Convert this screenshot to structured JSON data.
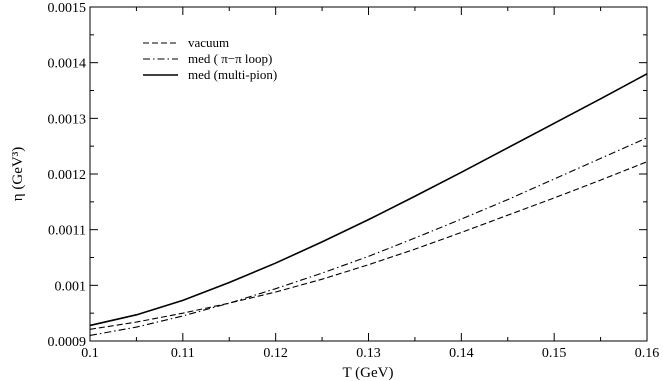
{
  "chart_data": {
    "type": "line",
    "xlabel": "T (GeV)",
    "ylabel": "η (GeV³)",
    "xlim": [
      0.1,
      0.16
    ],
    "ylim": [
      0.0009,
      0.0015
    ],
    "xticks": [
      0.1,
      0.11,
      0.12,
      0.13,
      0.14,
      0.15,
      0.16
    ],
    "xtick_labels": [
      "0.1",
      "0.11",
      "0.12",
      "0.13",
      "0.14",
      "0.15",
      "0.16"
    ],
    "yticks": [
      0.0009,
      0.001,
      0.0011,
      0.0012,
      0.0013,
      0.0014,
      0.0015
    ],
    "ytick_labels": [
      "0.0009",
      "0.001",
      "0.0011",
      "0.0012",
      "0.0013",
      "0.0014",
      "0.0015"
    ],
    "legend_position": "top-left",
    "grid": false,
    "series": [
      {
        "name": "vacuum",
        "style": "dashed",
        "color": "#000000",
        "x": [
          0.1,
          0.105,
          0.11,
          0.115,
          0.12,
          0.125,
          0.13,
          0.135,
          0.14,
          0.145,
          0.15,
          0.155,
          0.16
        ],
        "y": [
          0.000921,
          0.000934,
          0.00095,
          0.000968,
          0.000988,
          0.001011,
          0.001037,
          0.001065,
          0.001095,
          0.001126,
          0.001157,
          0.001189,
          0.001222
        ]
      },
      {
        "name": "med ( π−π   loop)",
        "style": "dashdot",
        "color": "#000000",
        "x": [
          0.1,
          0.105,
          0.11,
          0.115,
          0.12,
          0.125,
          0.13,
          0.135,
          0.14,
          0.145,
          0.15,
          0.155,
          0.16
        ],
        "y": [
          0.00091,
          0.000925,
          0.000945,
          0.000968,
          0.000994,
          0.001022,
          0.001052,
          0.001085,
          0.001119,
          0.001154,
          0.001191,
          0.001228,
          0.001265
        ]
      },
      {
        "name": "med (multi-pion)",
        "style": "solid",
        "color": "#000000",
        "x": [
          0.1,
          0.105,
          0.11,
          0.115,
          0.12,
          0.125,
          0.13,
          0.135,
          0.14,
          0.145,
          0.15,
          0.155,
          0.16
        ],
        "y": [
          0.000928,
          0.000947,
          0.000973,
          0.001005,
          0.00104,
          0.001078,
          0.001118,
          0.00116,
          0.001203,
          0.001247,
          0.001291,
          0.001335,
          0.00138
        ]
      }
    ]
  }
}
